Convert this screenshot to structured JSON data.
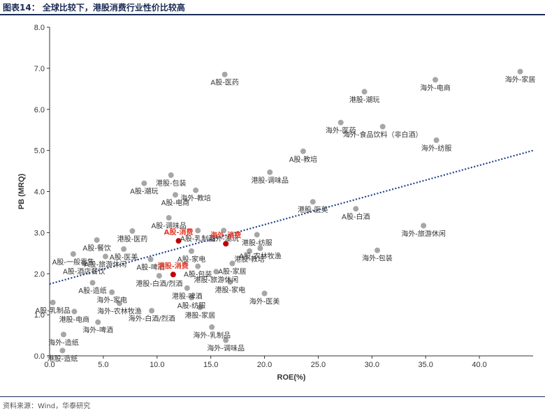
{
  "header": {
    "title": "图表14：  全球比较下，港股消费行业性价比较高"
  },
  "footer": {
    "source": "资料来源：Wind，华泰研究"
  },
  "chart_data": {
    "type": "scatter",
    "title": "图表14：  全球比较下，港股消费行业性价比较高",
    "xlabel": "ROE(%)",
    "ylabel": "PB (MRQ)",
    "xlim": [
      0,
      45
    ],
    "ylim": [
      0,
      8
    ],
    "xticks": [
      "0.0",
      "5.0",
      "10.0",
      "15.0",
      "20.0",
      "25.0",
      "30.0",
      "35.0",
      "40.0"
    ],
    "yticks": [
      "0.0",
      "1.0",
      "2.0",
      "3.0",
      "4.0",
      "5.0",
      "6.0",
      "7.0",
      "8.0"
    ],
    "grid": false,
    "trendline": {
      "style": "dotted",
      "color": "#1f3f8f",
      "x": [
        0,
        45
      ],
      "y": [
        1.75,
        5.0
      ]
    },
    "colors": {
      "point": "#a6a6a6",
      "highlight": "#c00000",
      "highlight_label": "#e23b2a",
      "axis": "#333333"
    },
    "points": [
      {
        "x": 16.3,
        "y": 6.85,
        "label": "A股-医药"
      },
      {
        "x": 43.8,
        "y": 6.92,
        "label": "海外-家居"
      },
      {
        "x": 35.9,
        "y": 6.72,
        "label": "海外-电商"
      },
      {
        "x": 29.3,
        "y": 6.43,
        "label": "港股-潮玩"
      },
      {
        "x": 27.1,
        "y": 5.68,
        "label": "海外-医药"
      },
      {
        "x": 31.0,
        "y": 5.58,
        "label": "海外-食品饮料（非白酒）"
      },
      {
        "x": 36.0,
        "y": 5.25,
        "label": "海外-纺服"
      },
      {
        "x": 23.6,
        "y": 4.98,
        "label": "A股-教培"
      },
      {
        "x": 20.5,
        "y": 4.47,
        "label": "港股-调味品"
      },
      {
        "x": 11.3,
        "y": 4.4,
        "label": "港股-包装"
      },
      {
        "x": 8.8,
        "y": 4.2,
        "label": "A股-潮玩"
      },
      {
        "x": 13.6,
        "y": 4.03,
        "label": "海外-教培"
      },
      {
        "x": 11.7,
        "y": 3.92,
        "label": "A股-电商"
      },
      {
        "x": 24.5,
        "y": 3.75,
        "label": "港股-医美"
      },
      {
        "x": 28.5,
        "y": 3.58,
        "label": "A股-白酒"
      },
      {
        "x": 11.1,
        "y": 3.36,
        "label": "A股-调味品"
      },
      {
        "x": 34.8,
        "y": 3.17,
        "label": "海外-旅游休闲"
      },
      {
        "x": 7.7,
        "y": 3.04,
        "label": "港股-医药"
      },
      {
        "x": 13.8,
        "y": 3.05,
        "label": "A股-乳制品"
      },
      {
        "x": 16.2,
        "y": 3.05,
        "label": "海外-潮玩"
      },
      {
        "x": 19.3,
        "y": 2.95,
        "label": "港股-纺服"
      },
      {
        "x": 4.4,
        "y": 2.82,
        "label": "A股-餐饮"
      },
      {
        "x": 19.6,
        "y": 2.62,
        "label": "A股-农林牧渔"
      },
      {
        "x": 6.9,
        "y": 2.6,
        "label": "A股-医美"
      },
      {
        "x": 13.2,
        "y": 2.55,
        "label": "A股-家电"
      },
      {
        "x": 18.6,
        "y": 2.55,
        "label": "港股-教培"
      },
      {
        "x": 2.2,
        "y": 2.48,
        "label": "A股-一般零售"
      },
      {
        "x": 5.2,
        "y": 2.42,
        "label": "A股-旅游休闲"
      },
      {
        "x": 3.2,
        "y": 2.25,
        "label": "A股-酒店餐饮"
      },
      {
        "x": 9.4,
        "y": 2.35,
        "label": "A股-啤酒"
      },
      {
        "x": 30.5,
        "y": 2.57,
        "label": "海外-包装"
      },
      {
        "x": 13.8,
        "y": 2.18,
        "label": "A股-包装"
      },
      {
        "x": 17.0,
        "y": 2.25,
        "label": "A股-家居"
      },
      {
        "x": 15.5,
        "y": 2.05,
        "label": "港股-旅游休闲"
      },
      {
        "x": 4.0,
        "y": 1.78,
        "label": "A股-造纸"
      },
      {
        "x": 10.2,
        "y": 1.95,
        "label": "港股-白酒/烈酒"
      },
      {
        "x": 12.8,
        "y": 1.65,
        "label": "港股-啤酒"
      },
      {
        "x": 13.2,
        "y": 1.42,
        "label": "A股-纺服"
      },
      {
        "x": 16.8,
        "y": 1.8,
        "label": "港股-家电"
      },
      {
        "x": 5.8,
        "y": 1.55,
        "label": "海外-家电"
      },
      {
        "x": 6.5,
        "y": 1.28,
        "label": "海外-农林牧渔"
      },
      {
        "x": 20.0,
        "y": 1.52,
        "label": "海外-医美"
      },
      {
        "x": 0.3,
        "y": 1.3,
        "label": "A股-乳制品"
      },
      {
        "x": 14.0,
        "y": 1.18,
        "label": "港股-家居"
      },
      {
        "x": 9.5,
        "y": 1.1,
        "label": "海外-白酒/烈酒"
      },
      {
        "x": 2.3,
        "y": 1.08,
        "label": "港股-电商"
      },
      {
        "x": 4.5,
        "y": 0.82,
        "label": "海外-啤酒"
      },
      {
        "x": 15.1,
        "y": 0.7,
        "label": "海外-乳制品"
      },
      {
        "x": 1.3,
        "y": 0.52,
        "label": "海外-造纸"
      },
      {
        "x": 1.2,
        "y": 0.13,
        "label": "港股-造纸"
      },
      {
        "x": 16.4,
        "y": 0.38,
        "label": "海外-调味品"
      }
    ],
    "highlights": [
      {
        "x": 12.0,
        "y": 2.8,
        "label": "A股-消费"
      },
      {
        "x": 16.4,
        "y": 2.73,
        "label": "海外-消费"
      },
      {
        "x": 11.5,
        "y": 1.98,
        "label": "港股-消费"
      }
    ]
  }
}
